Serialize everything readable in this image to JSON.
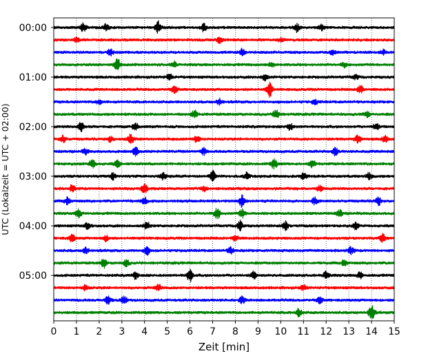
{
  "chart_data": {
    "type": "line",
    "title": "",
    "xlabel": "Zeit  [min]",
    "ylabel": "UTC (Lokalzeit = UTC + 02:00)",
    "xlim": [
      0,
      15
    ],
    "x_ticks": [
      "0",
      "1",
      "2",
      "3",
      "4",
      "5",
      "6",
      "7",
      "8",
      "9",
      "10",
      "11",
      "12",
      "13",
      "14",
      "15"
    ],
    "y_ticks": [
      "00:00",
      "01:00",
      "02:00",
      "03:00",
      "04:00",
      "05:00"
    ],
    "grid": "vertical dotted at each minute",
    "trace_interval_minutes": 15,
    "trace_count": 24,
    "trace_colors": [
      "#000000",
      "#ff0000",
      "#0000ff",
      "#008000"
    ],
    "traces": [
      {
        "start": "00:00",
        "color": "#000000",
        "events": [
          [
            1.3,
            0.8
          ],
          [
            2.3,
            0.6
          ],
          [
            4.6,
            1.0
          ],
          [
            6.6,
            0.8
          ],
          [
            10.7,
            0.7
          ],
          [
            11.8,
            0.5
          ]
        ]
      },
      {
        "start": "00:15",
        "color": "#ff0000",
        "events": [
          [
            1.0,
            0.4
          ],
          [
            7.3,
            0.6
          ],
          [
            10.0,
            0.3
          ]
        ]
      },
      {
        "start": "00:30",
        "color": "#0000ff",
        "events": [
          [
            2.5,
            0.6
          ],
          [
            8.3,
            0.6
          ],
          [
            12.3,
            0.5
          ],
          [
            14.5,
            0.4
          ]
        ]
      },
      {
        "start": "00:45",
        "color": "#008000",
        "events": [
          [
            2.8,
            1.0
          ],
          [
            5.3,
            0.5
          ],
          [
            9.6,
            0.5
          ],
          [
            12.8,
            0.4
          ]
        ]
      },
      {
        "start": "01:00",
        "color": "#000000",
        "events": [
          [
            5.1,
            0.6
          ],
          [
            9.3,
            0.6
          ],
          [
            13.3,
            0.4
          ]
        ]
      },
      {
        "start": "01:15",
        "color": "#ff0000",
        "events": [
          [
            5.3,
            0.7
          ],
          [
            9.5,
            1.4
          ],
          [
            13.5,
            0.8
          ]
        ]
      },
      {
        "start": "01:30",
        "color": "#0000ff",
        "events": [
          [
            2.0,
            0.4
          ],
          [
            7.3,
            0.5
          ],
          [
            11.5,
            0.4
          ]
        ]
      },
      {
        "start": "01:45",
        "color": "#008000",
        "events": [
          [
            6.2,
            0.7
          ],
          [
            9.8,
            0.9
          ],
          [
            13.8,
            0.5
          ]
        ]
      },
      {
        "start": "02:00",
        "color": "#000000",
        "events": [
          [
            1.2,
            0.9
          ],
          [
            3.6,
            0.6
          ],
          [
            10.4,
            0.7
          ],
          [
            14.2,
            0.6
          ]
        ]
      },
      {
        "start": "02:15",
        "color": "#ff0000",
        "events": [
          [
            0.4,
            0.6
          ],
          [
            2.5,
            0.5
          ],
          [
            3.4,
            0.8
          ],
          [
            6.3,
            0.6
          ],
          [
            13.4,
            0.7
          ],
          [
            14.6,
            0.6
          ]
        ]
      },
      {
        "start": "02:30",
        "color": "#0000ff",
        "events": [
          [
            1.4,
            0.5
          ],
          [
            3.6,
            0.7
          ],
          [
            6.6,
            0.6
          ],
          [
            12.4,
            0.7
          ]
        ]
      },
      {
        "start": "02:45",
        "color": "#008000",
        "events": [
          [
            1.7,
            0.8
          ],
          [
            2.8,
            0.6
          ],
          [
            9.7,
            0.9
          ],
          [
            11.4,
            0.6
          ]
        ]
      },
      {
        "start": "03:00",
        "color": "#000000",
        "events": [
          [
            2.6,
            0.6
          ],
          [
            4.8,
            0.6
          ],
          [
            7.0,
            0.9
          ],
          [
            8.5,
            0.6
          ],
          [
            11.0,
            0.6
          ],
          [
            13.9,
            0.6
          ]
        ]
      },
      {
        "start": "03:15",
        "color": "#ff0000",
        "events": [
          [
            0.8,
            0.6
          ],
          [
            4.0,
            0.9
          ],
          [
            6.6,
            0.5
          ],
          [
            11.7,
            0.5
          ]
        ]
      },
      {
        "start": "03:30",
        "color": "#0000ff",
        "events": [
          [
            0.6,
            0.6
          ],
          [
            4.0,
            0.6
          ],
          [
            8.3,
            1.2
          ],
          [
            11.5,
            0.6
          ],
          [
            14.3,
            0.7
          ]
        ]
      },
      {
        "start": "03:45",
        "color": "#008000",
        "events": [
          [
            1.1,
            0.7
          ],
          [
            7.2,
            1.0
          ],
          [
            8.3,
            0.8
          ],
          [
            12.6,
            0.6
          ]
        ]
      },
      {
        "start": "04:00",
        "color": "#000000",
        "events": [
          [
            1.5,
            0.6
          ],
          [
            4.1,
            0.7
          ],
          [
            8.2,
            0.9
          ],
          [
            10.2,
            0.8
          ],
          [
            13.3,
            0.6
          ]
        ]
      },
      {
        "start": "04:15",
        "color": "#ff0000",
        "events": [
          [
            0.8,
            0.7
          ],
          [
            2.3,
            0.5
          ],
          [
            8.0,
            0.6
          ],
          [
            14.5,
            0.8
          ]
        ]
      },
      {
        "start": "04:30",
        "color": "#0000ff",
        "events": [
          [
            1.4,
            0.6
          ],
          [
            4.1,
            0.7
          ],
          [
            7.8,
            0.6
          ],
          [
            13.1,
            0.6
          ]
        ]
      },
      {
        "start": "04:45",
        "color": "#008000",
        "events": [
          [
            2.2,
            0.8
          ],
          [
            3.2,
            0.6
          ],
          [
            12.8,
            0.5
          ]
        ]
      },
      {
        "start": "05:00",
        "color": "#000000",
        "events": [
          [
            3.6,
            0.6
          ],
          [
            6.0,
            1.1
          ],
          [
            8.8,
            0.6
          ],
          [
            12.0,
            0.7
          ],
          [
            13.5,
            0.6
          ]
        ]
      },
      {
        "start": "05:15",
        "color": "#ff0000",
        "events": [
          [
            1.4,
            0.5
          ],
          [
            4.6,
            0.6
          ],
          [
            11.0,
            0.5
          ]
        ]
      },
      {
        "start": "05:30",
        "color": "#0000ff",
        "events": [
          [
            2.4,
            0.8
          ],
          [
            3.1,
            0.7
          ],
          [
            8.3,
            0.6
          ],
          [
            11.7,
            0.6
          ]
        ]
      },
      {
        "start": "05:45",
        "color": "#008000",
        "events": [
          [
            10.8,
            0.7
          ],
          [
            14.0,
            1.4
          ]
        ]
      }
    ]
  }
}
